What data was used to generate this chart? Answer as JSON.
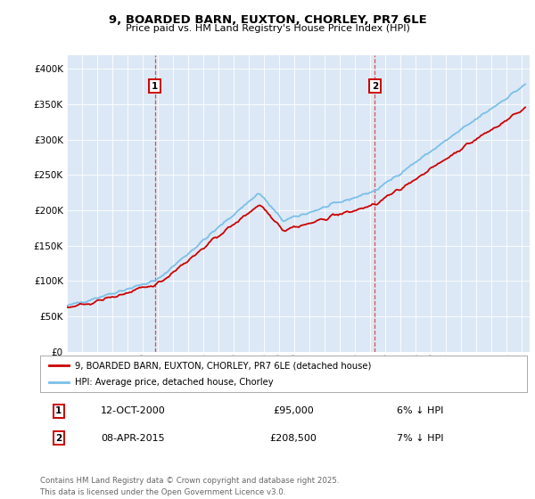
{
  "title1": "9, BOARDED BARN, EUXTON, CHORLEY, PR7 6LE",
  "title2": "Price paid vs. HM Land Registry's House Price Index (HPI)",
  "legend_label1": "9, BOARDED BARN, EUXTON, CHORLEY, PR7 6LE (detached house)",
  "legend_label2": "HPI: Average price, detached house, Chorley",
  "transaction1_date": "12-OCT-2000",
  "transaction1_price": 95000,
  "transaction1_label": "6% ↓ HPI",
  "transaction2_date": "08-APR-2015",
  "transaction2_price": 208500,
  "transaction2_label": "7% ↓ HPI",
  "footer": "Contains HM Land Registry data © Crown copyright and database right 2025.\nThis data is licensed under the Open Government Licence v3.0.",
  "hpi_color": "#7bbfe8",
  "price_color": "#cc0000",
  "background_color": "#dce8f5",
  "ylim_min": 0,
  "ylim_max": 420000,
  "transaction1_x": 2000.79,
  "transaction2_x": 2015.27,
  "yticks": [
    0,
    50000,
    100000,
    150000,
    200000,
    250000,
    300000,
    350000,
    400000
  ],
  "xticks": [
    1995,
    1996,
    1997,
    1998,
    1999,
    2000,
    2001,
    2002,
    2003,
    2004,
    2005,
    2006,
    2007,
    2008,
    2009,
    2010,
    2011,
    2012,
    2013,
    2014,
    2015,
    2016,
    2017,
    2018,
    2019,
    2020,
    2021,
    2022,
    2023,
    2024,
    2025
  ],
  "hpi_anchors_idx": [
    0,
    70,
    151,
    170,
    243,
    363
  ],
  "hpi_anchors_val": [
    65000,
    101000,
    225000,
    185000,
    228000,
    380000
  ],
  "xlim_left": 1995.0,
  "xlim_right": 2025.5
}
